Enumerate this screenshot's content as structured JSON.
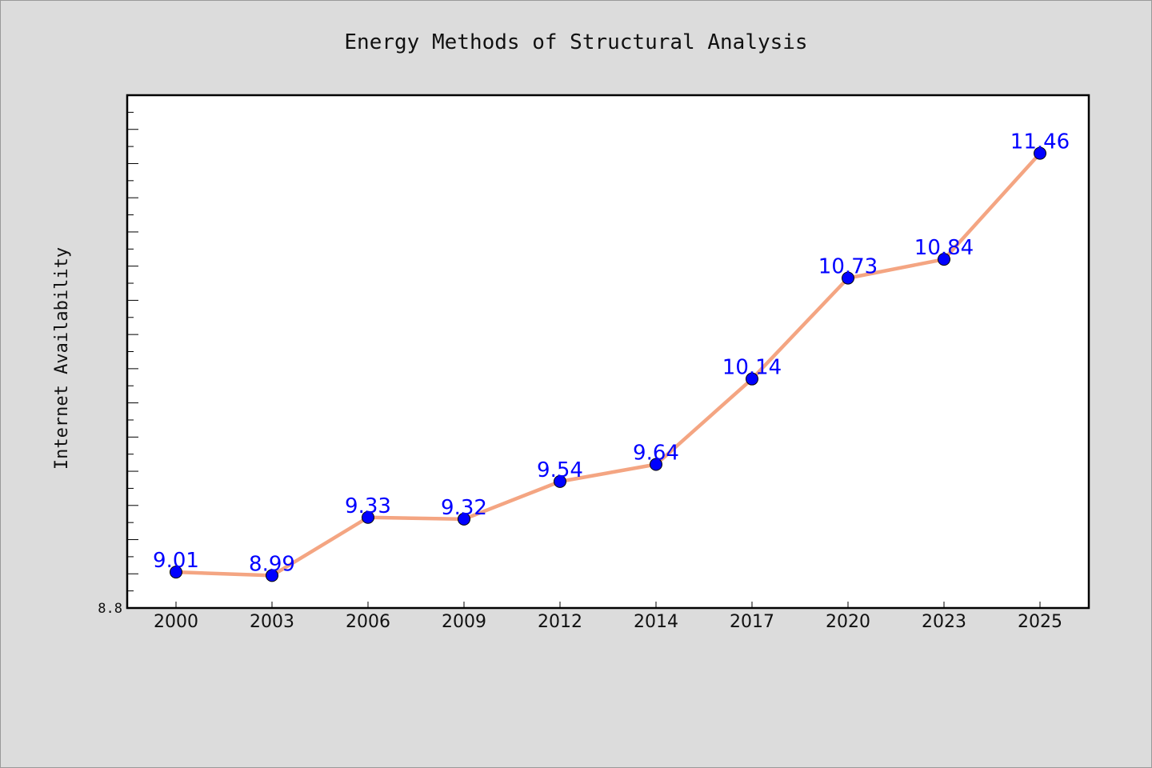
{
  "chart_data": {
    "type": "line",
    "title": "Energy Methods of Structural Analysis",
    "xlabel": "",
    "ylabel": "Internet Availability",
    "categories": [
      "2000",
      "2003",
      "2006",
      "2009",
      "2012",
      "2014",
      "2017",
      "2020",
      "2023",
      "2025"
    ],
    "series": [
      {
        "values": [
          9.01,
          8.99,
          9.33,
          9.32,
          9.54,
          9.64,
          10.14,
          10.73,
          10.84,
          11.46
        ],
        "labels": [
          "9.01",
          "8.99",
          "9.33",
          "9.32",
          "9.54",
          "9.64",
          "10.14",
          "10.73",
          "10.84",
          "11.46"
        ]
      }
    ],
    "ylim": [
      8.8,
      11.8
    ],
    "yticks_labeled": [
      "8.8"
    ],
    "grid": false,
    "legend": "none",
    "colors": {
      "background": "#dcdcdc",
      "plot_background": "#ffffff",
      "line": "#f4a582",
      "marker": "#0000ff",
      "data_label": "#0000ff",
      "axis": "#000000"
    }
  }
}
